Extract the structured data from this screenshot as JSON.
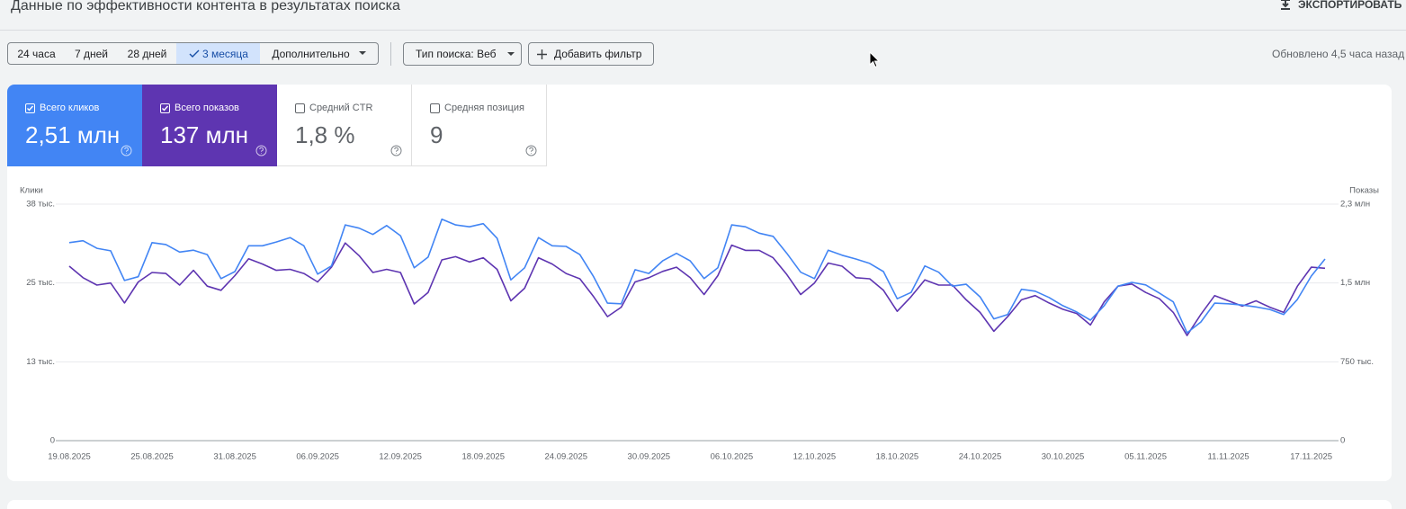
{
  "header": {
    "title": "Данные по эффективности контента в результатах поиска",
    "export": "ЭКСПОРТИРОВАТЬ"
  },
  "periods": [
    {
      "label": "24 часа",
      "selected": false
    },
    {
      "label": "7 дней",
      "selected": false
    },
    {
      "label": "28 дней",
      "selected": false
    },
    {
      "label": "3 месяца",
      "selected": true
    }
  ],
  "more": "Дополнительно",
  "search_type": "Тип поиска: Веб",
  "add_filter": "Добавить фильтр",
  "updated": "Обновлено 4,5 часа назад",
  "metrics": [
    {
      "label": "Всего кликов",
      "value": "2,51 млн",
      "checked": true
    },
    {
      "label": "Всего показов",
      "value": "137 млн",
      "checked": true
    },
    {
      "label": "Средний CTR",
      "value": "1,8 %",
      "checked": false
    },
    {
      "label": "Средняя позиция",
      "value": "9",
      "checked": false
    }
  ],
  "chart_data": {
    "type": "line",
    "y_label": "Клики",
    "y2_label": "Показы",
    "categories": [
      "19.08.2025",
      null,
      null,
      null,
      null,
      null,
      "25.08.2025",
      null,
      null,
      null,
      null,
      null,
      "31.08.2025",
      null,
      null,
      null,
      null,
      null,
      "06.09.2025",
      null,
      null,
      null,
      null,
      null,
      "12.09.2025",
      null,
      null,
      null,
      null,
      null,
      "18.09.2025",
      null,
      null,
      null,
      null,
      null,
      "24.09.2025",
      null,
      null,
      null,
      null,
      null,
      "30.09.2025",
      null,
      null,
      null,
      null,
      null,
      "06.10.2025",
      null,
      null,
      null,
      null,
      null,
      "12.10.2025",
      null,
      null,
      null,
      null,
      null,
      "18.10.2025",
      null,
      null,
      null,
      null,
      null,
      "24.10.2025",
      null,
      null,
      null,
      null,
      null,
      "30.10.2025",
      null,
      null,
      null,
      null,
      null,
      "05.11.2025",
      null,
      null,
      null,
      null,
      null,
      "11.11.2025",
      null,
      null,
      null,
      null,
      null,
      "17.11.2025",
      null
    ],
    "series": [
      {
        "color": "#4285f4",
        "axis": "y",
        "values": [
          31400,
          31700,
          30500,
          30100,
          25400,
          26000,
          31400,
          31100,
          29900,
          30200,
          29500,
          25700,
          26800,
          30900,
          30900,
          31500,
          32200,
          30900,
          26400,
          27700,
          34200,
          33700,
          32700,
          34100,
          32500,
          27400,
          29100,
          35100,
          34200,
          33900,
          34400,
          32100,
          25500,
          27400,
          32200,
          30900,
          30800,
          29500,
          26000,
          21800,
          21700,
          27100,
          26500,
          28500,
          29700,
          28500,
          25700,
          27400,
          34200,
          33900,
          32900,
          32400,
          29700,
          26700,
          25700,
          30200,
          29400,
          28800,
          28100,
          26800,
          22500,
          23500,
          27700,
          26700,
          24500,
          24800,
          22800,
          19300,
          20000,
          24000,
          23700,
          22700,
          21400,
          20400,
          19100,
          21400,
          24500,
          25100,
          24700,
          23400,
          22000,
          17100,
          18800,
          21800,
          21700,
          21500,
          21200,
          20800,
          20000,
          22400,
          26100,
          28800
        ]
      },
      {
        "color": "#5e35b1",
        "axis": "y2",
        "values": [
          1660000,
          1550000,
          1480000,
          1500000,
          1310000,
          1510000,
          1600000,
          1590000,
          1480000,
          1620000,
          1470000,
          1430000,
          1570000,
          1730000,
          1680000,
          1620000,
          1630000,
          1590000,
          1510000,
          1650000,
          1880000,
          1760000,
          1600000,
          1630000,
          1600000,
          1300000,
          1410000,
          1720000,
          1750000,
          1700000,
          1740000,
          1630000,
          1330000,
          1450000,
          1740000,
          1680000,
          1590000,
          1540000,
          1370000,
          1180000,
          1270000,
          1510000,
          1550000,
          1610000,
          1650000,
          1550000,
          1390000,
          1570000,
          1860000,
          1810000,
          1810000,
          1740000,
          1580000,
          1390000,
          1500000,
          1690000,
          1660000,
          1550000,
          1540000,
          1430000,
          1230000,
          1370000,
          1530000,
          1480000,
          1480000,
          1340000,
          1220000,
          1040000,
          1180000,
          1340000,
          1380000,
          1310000,
          1250000,
          1210000,
          1100000,
          1320000,
          1470000,
          1490000,
          1410000,
          1350000,
          1220000,
          1000000,
          1200000,
          1380000,
          1330000,
          1280000,
          1330000,
          1270000,
          1220000,
          1470000,
          1650000,
          1640000
        ]
      }
    ],
    "ylim": [
      0,
      37500
    ],
    "yticks": [
      0,
      {
        "value": 12500,
        "label": "13 тыс."
      },
      {
        "value": 25000,
        "label": "25 тыс."
      },
      {
        "value": 37500,
        "label": "38 тыс."
      }
    ],
    "y2lim": [
      0,
      2250000
    ],
    "y2ticks": [
      0,
      {
        "value": 750000,
        "label": "750 тыс."
      },
      {
        "value": 1500000,
        "label": "1,5 млн"
      },
      {
        "value": 2250000,
        "label": "2,3 млн"
      }
    ],
    "grid": true
  }
}
